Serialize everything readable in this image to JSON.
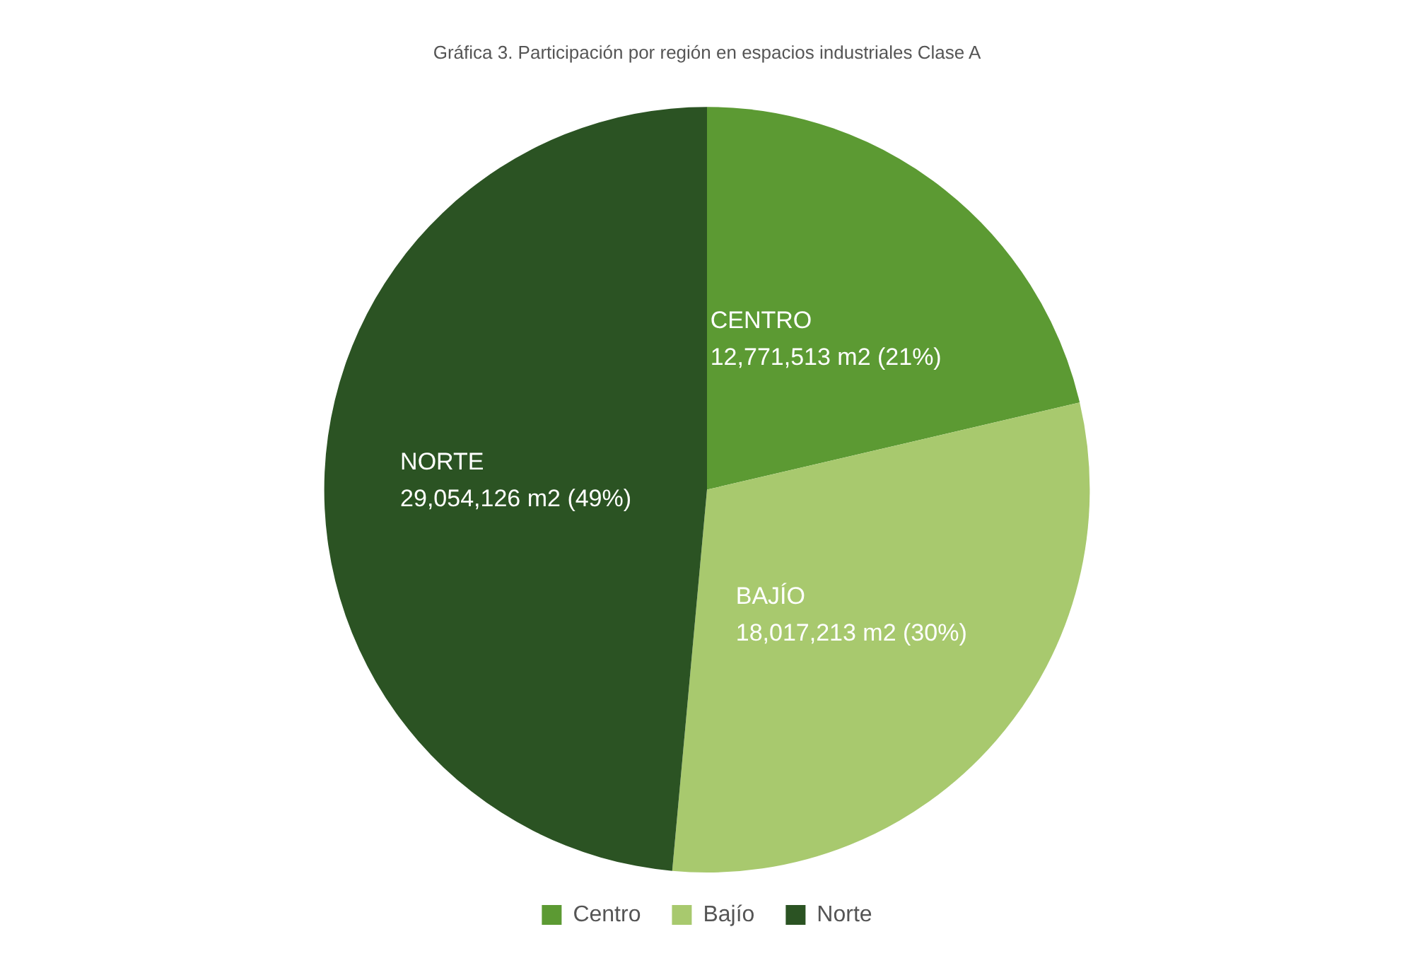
{
  "chart_data": {
    "type": "pie",
    "title": "Gráfica 3. Participación por región en espacios industriales Clase A",
    "categories": [
      "Centro",
      "Bajío",
      "Norte"
    ],
    "values": [
      12771513,
      18017213,
      29054126
    ],
    "colors": [
      "#5c9a33",
      "#a8c96e",
      "#2b5323"
    ],
    "value_labels": [
      "CENTRO\n12,771,513 m2 (21%)",
      "BAJÍO\n18,017,213 m2 (30%)",
      "NORTE\n29,054,126 m2 (49%)"
    ],
    "legend": "bottom"
  }
}
